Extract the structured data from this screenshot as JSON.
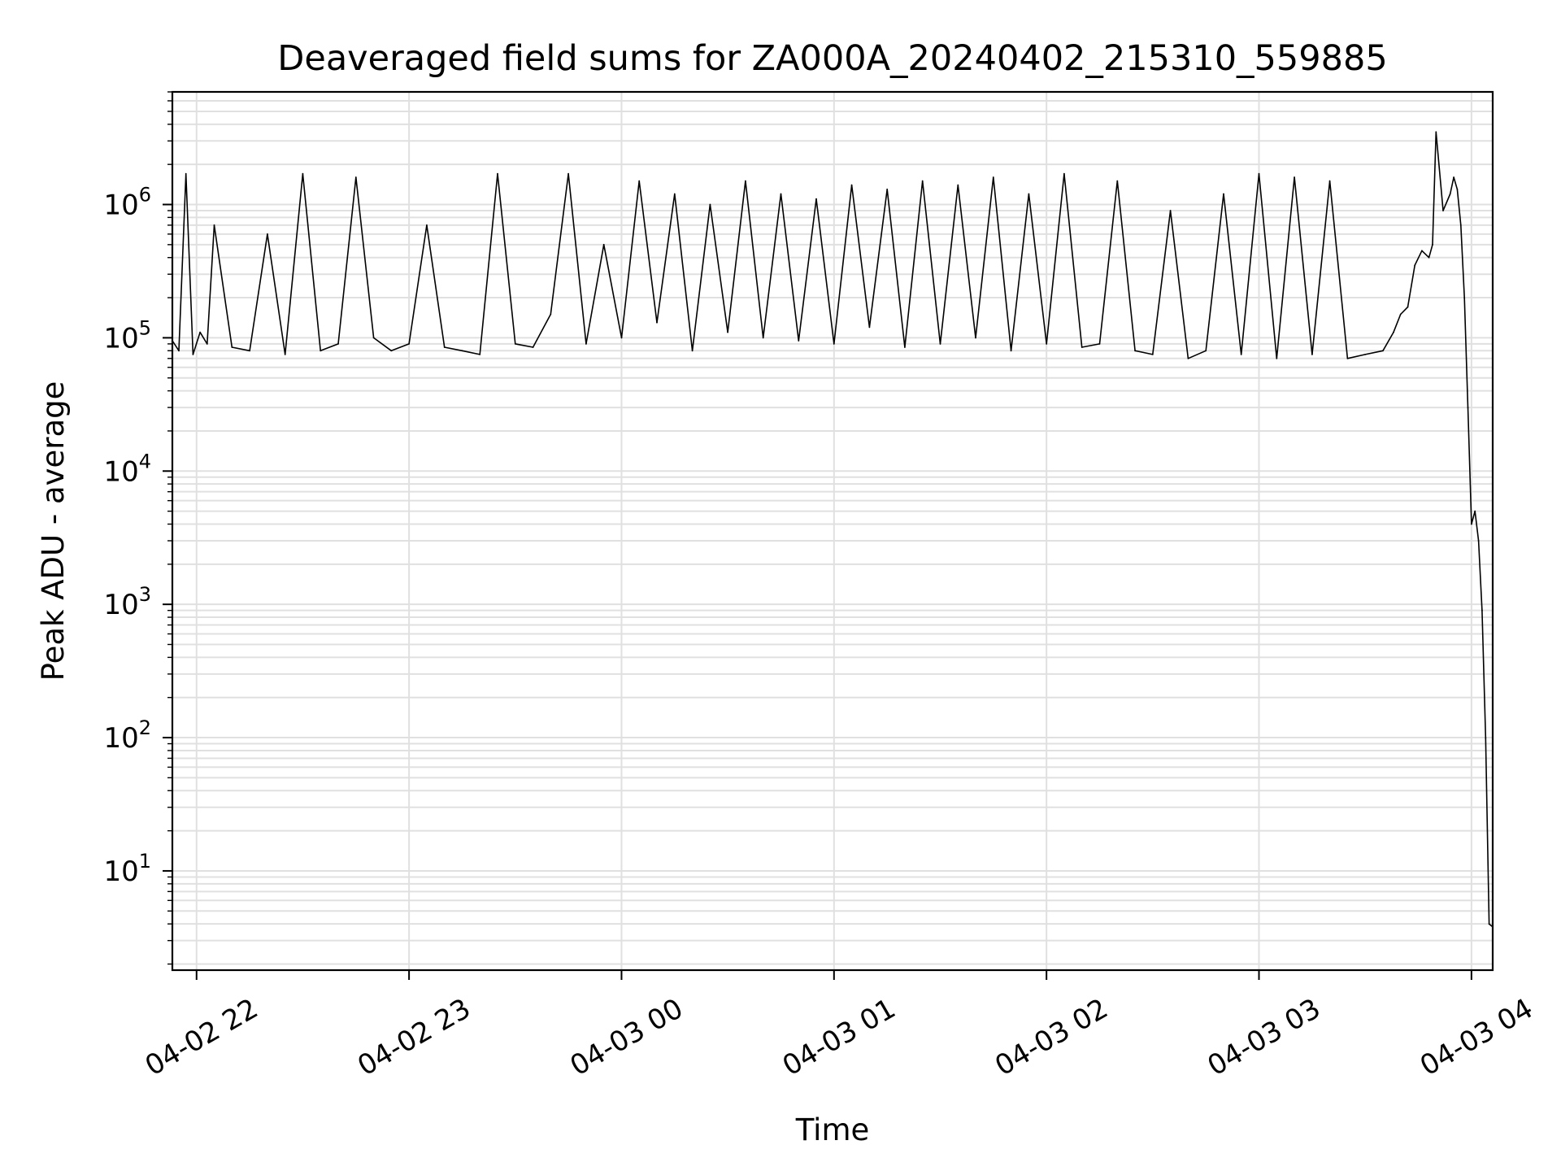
{
  "chart_data": {
    "type": "line",
    "title": "Deaveraged field sums for ZA000A_20240402_215310_559885",
    "xlabel": "Time",
    "ylabel": "Peak ADU - average",
    "yscale": "log",
    "ylim": [
      1.8,
      7000000
    ],
    "xlim": [
      "2024-04-02 21:53:10",
      "2024-04-03 04:06:00"
    ],
    "grid": true,
    "legend": "none",
    "line_color": "#000000",
    "grid_color": "#e0e0e0",
    "x_ticks": [
      {
        "t": "2024-04-02 22:00:00",
        "label": "04-02 22"
      },
      {
        "t": "2024-04-02 23:00:00",
        "label": "04-02 23"
      },
      {
        "t": "2024-04-03 00:00:00",
        "label": "04-03 00"
      },
      {
        "t": "2024-04-03 01:00:00",
        "label": "04-03 01"
      },
      {
        "t": "2024-04-03 02:00:00",
        "label": "04-03 02"
      },
      {
        "t": "2024-04-03 03:00:00",
        "label": "04-03 03"
      },
      {
        "t": "2024-04-03 04:00:00",
        "label": "04-03 04"
      }
    ],
    "y_ticks": [
      {
        "value": 10,
        "mantissa": "10",
        "exponent": "1"
      },
      {
        "value": 100,
        "mantissa": "10",
        "exponent": "2"
      },
      {
        "value": 1000,
        "mantissa": "10",
        "exponent": "3"
      },
      {
        "value": 10000,
        "mantissa": "10",
        "exponent": "4"
      },
      {
        "value": 100000,
        "mantissa": "10",
        "exponent": "5"
      },
      {
        "value": 1000000,
        "mantissa": "10",
        "exponent": "6"
      }
    ],
    "series": [
      {
        "x": [
          "2024-04-02 21:53:10",
          "2024-04-02 21:55:00",
          "2024-04-02 21:57:00",
          "2024-04-02 21:59:00",
          "2024-04-02 22:01:00",
          "2024-04-02 22:03:00",
          "2024-04-02 22:05:00",
          "2024-04-02 22:10:00",
          "2024-04-02 22:15:00",
          "2024-04-02 22:20:00",
          "2024-04-02 22:25:00",
          "2024-04-02 22:30:00",
          "2024-04-02 22:35:00",
          "2024-04-02 22:40:00",
          "2024-04-02 22:45:00",
          "2024-04-02 22:50:00",
          "2024-04-02 22:55:00",
          "2024-04-02 23:00:00",
          "2024-04-02 23:05:00",
          "2024-04-02 23:10:00",
          "2024-04-02 23:15:00",
          "2024-04-02 23:20:00",
          "2024-04-02 23:25:00",
          "2024-04-02 23:30:00",
          "2024-04-02 23:35:00",
          "2024-04-02 23:40:00",
          "2024-04-02 23:45:00",
          "2024-04-02 23:50:00",
          "2024-04-02 23:55:00",
          "2024-04-03 00:00:00",
          "2024-04-03 00:05:00",
          "2024-04-03 00:10:00",
          "2024-04-03 00:15:00",
          "2024-04-03 00:20:00",
          "2024-04-03 00:25:00",
          "2024-04-03 00:30:00",
          "2024-04-03 00:35:00",
          "2024-04-03 00:40:00",
          "2024-04-03 00:45:00",
          "2024-04-03 00:50:00",
          "2024-04-03 00:55:00",
          "2024-04-03 01:00:00",
          "2024-04-03 01:05:00",
          "2024-04-03 01:10:00",
          "2024-04-03 01:15:00",
          "2024-04-03 01:20:00",
          "2024-04-03 01:25:00",
          "2024-04-03 01:30:00",
          "2024-04-03 01:35:00",
          "2024-04-03 01:40:00",
          "2024-04-03 01:45:00",
          "2024-04-03 01:50:00",
          "2024-04-03 01:55:00",
          "2024-04-03 02:00:00",
          "2024-04-03 02:05:00",
          "2024-04-03 02:10:00",
          "2024-04-03 02:15:00",
          "2024-04-03 02:20:00",
          "2024-04-03 02:25:00",
          "2024-04-03 02:30:00",
          "2024-04-03 02:35:00",
          "2024-04-03 02:40:00",
          "2024-04-03 02:45:00",
          "2024-04-03 02:50:00",
          "2024-04-03 02:55:00",
          "2024-04-03 03:00:00",
          "2024-04-03 03:05:00",
          "2024-04-03 03:10:00",
          "2024-04-03 03:15:00",
          "2024-04-03 03:20:00",
          "2024-04-03 03:25:00",
          "2024-04-03 03:30:00",
          "2024-04-03 03:35:00",
          "2024-04-03 03:38:00",
          "2024-04-03 03:40:00",
          "2024-04-03 03:42:00",
          "2024-04-03 03:44:00",
          "2024-04-03 03:46:00",
          "2024-04-03 03:48:00",
          "2024-04-03 03:49:00",
          "2024-04-03 03:50:00",
          "2024-04-03 03:52:00",
          "2024-04-03 03:54:00",
          "2024-04-03 03:55:00",
          "2024-04-03 03:56:00",
          "2024-04-03 03:57:00",
          "2024-04-03 03:58:00",
          "2024-04-03 03:59:00",
          "2024-04-03 04:00:00",
          "2024-04-03 04:01:00",
          "2024-04-03 04:02:00",
          "2024-04-03 04:03:00",
          "2024-04-03 04:04:00",
          "2024-04-03 04:05:00",
          "2024-04-03 04:06:00"
        ],
        "y": [
          95000,
          80000,
          1700000,
          75000,
          110000,
          90000,
          700000,
          85000,
          80000,
          600000,
          75000,
          1700000,
          80000,
          90000,
          1600000,
          100000,
          80000,
          90000,
          700000,
          85000,
          80000,
          75000,
          1700000,
          90000,
          85000,
          150000,
          1700000,
          90000,
          500000,
          100000,
          1500000,
          130000,
          1200000,
          80000,
          1000000,
          110000,
          1500000,
          100000,
          1200000,
          95000,
          1100000,
          90000,
          1400000,
          120000,
          1300000,
          85000,
          1500000,
          90000,
          1400000,
          100000,
          1600000,
          80000,
          1200000,
          90000,
          1700000,
          85000,
          90000,
          1500000,
          80000,
          75000,
          900000,
          70000,
          80000,
          1200000,
          75000,
          1700000,
          70000,
          1600000,
          75000,
          1500000,
          70000,
          75000,
          80000,
          110000,
          150000,
          170000,
          350000,
          450000,
          400000,
          500000,
          3500000,
          900000,
          1200000,
          1600000,
          1300000,
          700000,
          200000,
          30000,
          4000,
          5000,
          3000,
          900,
          100,
          4,
          3.8
        ]
      }
    ]
  }
}
